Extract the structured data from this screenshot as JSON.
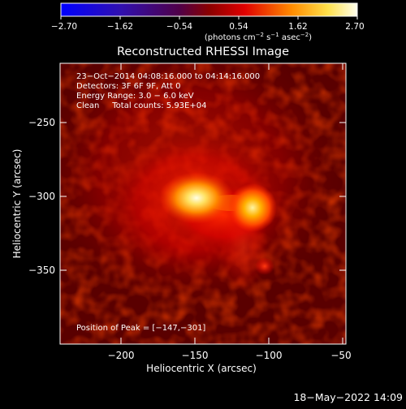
{
  "colorbar": {
    "ticks": [
      "−2.70",
      "−1.62",
      "−0.54",
      "0.54",
      "1.62",
      "2.70"
    ],
    "unit_prefix": "(photons cm",
    "unit_exp1": "−2",
    "unit_mid": " s",
    "unit_exp2": "−1",
    "unit_asec": " asec",
    "unit_exp3": "−2",
    "unit_suffix": ")"
  },
  "title": "Reconstructed RHESSI Image",
  "info": {
    "line1": "23−Oct−2014 04:08:16.000 to 04:14:16.000",
    "line2": "Detectors: 3F 6F 9F, Att 0",
    "line3": "Energy Range: 3.0 − 6.0 keV",
    "line4": "Clean     Total counts: 5.93E+04"
  },
  "peak_label": "Position of Peak = [−147,−301]",
  "axes": {
    "xlabel": "Heliocentric X (arcsec)",
    "ylabel": "Heliocentric Y (arcsec)",
    "xticks": [
      "−200",
      "−150",
      "−100",
      "−50"
    ],
    "yticks": [
      "−250",
      "−300",
      "−350"
    ]
  },
  "timestamp": "18−May−2022 14:09",
  "colors": {
    "background": "#000000",
    "text": "#ffffff"
  }
}
